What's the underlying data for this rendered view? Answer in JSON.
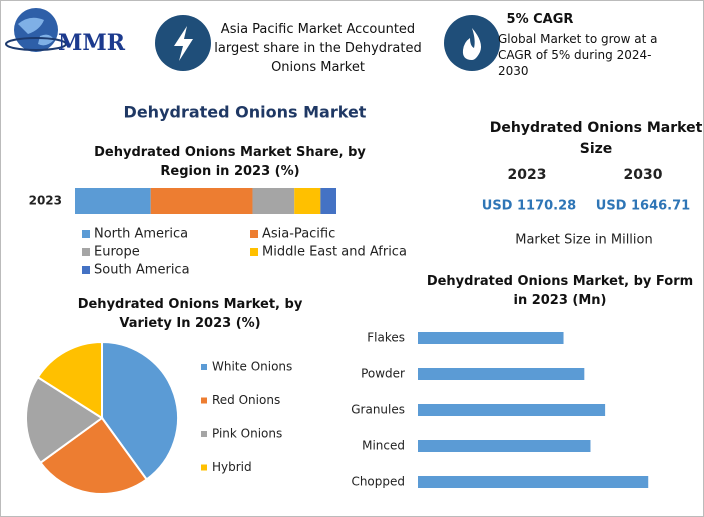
{
  "header": {
    "logo": "MMR",
    "info_1": "Asia Pacific Market Accounted largest share in the Dehydrated Onions Market",
    "info_2_title": "5% CAGR",
    "info_2": "Global Market to grow at a CAGR of 5% during 2024-2030"
  },
  "title": "Dehydrated Onions Market",
  "market_size": {
    "title": "Dehydrated Onions Market Size",
    "years": [
      "2023",
      "2030"
    ],
    "values": [
      "USD 1170.28",
      "USD 1646.71"
    ],
    "note": "Market Size in Million"
  },
  "chart_data": [
    {
      "type": "stacked_bar",
      "title": "Dehydrated Onions Market Share, by Region in 2023 (%)",
      "categories": [
        "2023"
      ],
      "xlim": [
        0,
        100
      ],
      "series": [
        {
          "name": "North America",
          "color": "#5b9bd5",
          "values": [
            29
          ]
        },
        {
          "name": "Asia-Pacific",
          "color": "#ed7d31",
          "values": [
            39
          ]
        },
        {
          "name": "Europe",
          "color": "#a5a5a5",
          "values": [
            16
          ]
        },
        {
          "name": "Middle East and Africa",
          "color": "#ffc000",
          "values": [
            10
          ]
        },
        {
          "name": "South America",
          "color": "#4472c4",
          "values": [
            6
          ]
        }
      ]
    },
    {
      "type": "pie",
      "title": "Dehydrated Onions Market, by Variety In 2023 (%)",
      "categories": [
        "White Onions",
        "Red Onions",
        "Pink Onions",
        "Hybrid"
      ],
      "values": [
        40,
        25,
        19,
        16
      ],
      "colors": [
        "#5b9bd5",
        "#ed7d31",
        "#a5a5a5",
        "#ffc000"
      ]
    },
    {
      "type": "hbar",
      "title": "Dehydrated Onions Market, by Form in 2023 (Mn)",
      "categories": [
        "Flakes",
        "Powder",
        "Granules",
        "Minced",
        "Chopped"
      ],
      "values": [
        189,
        216,
        243,
        224,
        299
      ],
      "color": "#5b9bd5",
      "xlim": [
        0,
        300
      ]
    }
  ]
}
